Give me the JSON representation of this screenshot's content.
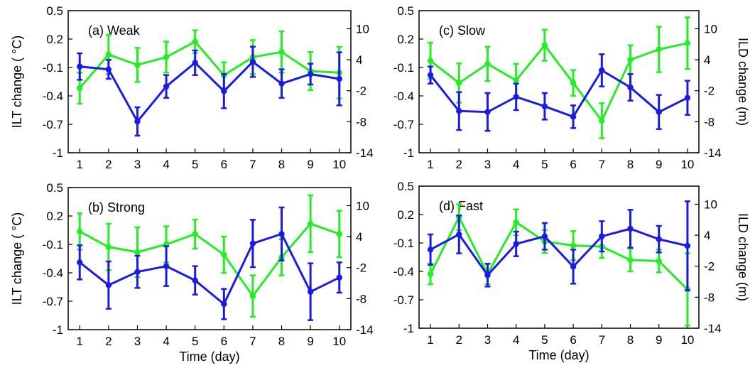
{
  "colors": {
    "ilt": "#1a1ae6",
    "ild": "#22ee22"
  },
  "shared": {
    "xlabel": "Time (day)",
    "ylabel_left": "ILT change ( °C)",
    "ylabel_right": "ILD change (m)",
    "left_ticks": [
      "0.5",
      "0.2",
      "-0.1",
      "-0.4",
      "-0.7",
      "-1"
    ],
    "right_ticks": [
      "10",
      "4",
      "-2",
      "-8",
      "-14"
    ],
    "x_ticks": [
      "1",
      "2",
      "3",
      "4",
      "5",
      "6",
      "7",
      "8",
      "9",
      "10"
    ]
  },
  "chart_data": [
    {
      "type": "line",
      "title": "(a) Weak",
      "x": [
        1,
        2,
        3,
        4,
        5,
        6,
        7,
        8,
        9,
        10
      ],
      "xlim": [
        0.6,
        10.4
      ],
      "ylim_left": [
        -1,
        0.5
      ],
      "ylim_right": [
        -14,
        13.5
      ],
      "series": [
        {
          "axis": "left",
          "color": "ilt",
          "values": [
            -0.09,
            -0.12,
            -0.67,
            -0.3,
            -0.05,
            -0.35,
            -0.04,
            -0.27,
            -0.17,
            -0.22
          ],
          "err": [
            0.14,
            0.1,
            0.15,
            0.12,
            0.13,
            0.18,
            0.16,
            0.15,
            0.11,
            0.28
          ]
        },
        {
          "axis": "right",
          "color": "ild",
          "values": [
            -1.5,
            5,
            3,
            4.5,
            7.5,
            1,
            4.5,
            5.5,
            1.8,
            1.5
          ],
          "err": [
            3,
            3.8,
            3.3,
            3,
            2.2,
            2.5,
            3.3,
            4,
            3.7,
            5
          ]
        }
      ]
    },
    {
      "type": "line",
      "title": "(b) Strong",
      "x": [
        1,
        2,
        3,
        4,
        5,
        6,
        7,
        8,
        9,
        10
      ],
      "xlim": [
        0.6,
        10.4
      ],
      "ylim_left": [
        -1,
        0.5
      ],
      "ylim_right": [
        -14,
        13.5
      ],
      "series": [
        {
          "axis": "left",
          "color": "ilt",
          "values": [
            -0.29,
            -0.53,
            -0.39,
            -0.33,
            -0.48,
            -0.73,
            -0.09,
            0.01,
            -0.6,
            -0.45
          ],
          "err": [
            0.18,
            0.25,
            0.17,
            0.21,
            0.15,
            0.16,
            0.25,
            0.28,
            0.3,
            0.16
          ]
        },
        {
          "axis": "right",
          "color": "ild",
          "values": [
            5,
            2,
            1,
            2.5,
            4.5,
            0.5,
            -7.5,
            0,
            6.5,
            4.5
          ],
          "err": [
            3.5,
            4.5,
            4.8,
            3.5,
            2.8,
            3.5,
            4,
            3.5,
            5.5,
            4.5
          ]
        }
      ]
    },
    {
      "type": "line",
      "title": "(c) Slow",
      "x": [
        1,
        2,
        3,
        4,
        5,
        6,
        7,
        8,
        9,
        10
      ],
      "xlim": [
        0.6,
        10.4
      ],
      "ylim_left": [
        -1,
        0.5
      ],
      "ylim_right": [
        -14,
        13.5
      ],
      "series": [
        {
          "axis": "left",
          "color": "ilt",
          "values": [
            -0.18,
            -0.56,
            -0.57,
            -0.41,
            -0.51,
            -0.62,
            -0.13,
            -0.31,
            -0.57,
            -0.42
          ],
          "err": [
            0.09,
            0.2,
            0.2,
            0.14,
            0.14,
            0.12,
            0.17,
            0.14,
            0.18,
            0.18
          ]
        },
        {
          "axis": "right",
          "color": "ild",
          "values": [
            3.8,
            -0.5,
            3.2,
            0,
            6.8,
            -0.5,
            -7.8,
            4,
            6,
            7.2
          ],
          "err": [
            3.5,
            3.8,
            3.3,
            3.2,
            3,
            2.5,
            3.4,
            2.8,
            4.4,
            5
          ]
        }
      ]
    },
    {
      "type": "line",
      "title": "(d) Fast",
      "x": [
        1,
        2,
        3,
        4,
        5,
        6,
        7,
        8,
        9,
        10
      ],
      "xlim": [
        0.6,
        10.4
      ],
      "ylim_left": [
        -1,
        0.5
      ],
      "ylim_right": [
        -14,
        13.5
      ],
      "series": [
        {
          "axis": "left",
          "color": "ilt",
          "values": [
            -0.17,
            -0.01,
            -0.44,
            -0.11,
            -0.03,
            -0.35,
            -0.03,
            0.05,
            -0.06,
            -0.13
          ],
          "err": [
            0.16,
            0.2,
            0.12,
            0.13,
            0.14,
            0.18,
            0.16,
            0.2,
            0.14,
            0.47
          ]
        },
        {
          "axis": "right",
          "color": "ild",
          "values": [
            -3.5,
            7.5,
            -3.5,
            6.5,
            2.8,
            2,
            1.8,
            -0.8,
            -1,
            -6.5
          ],
          "err": [
            2,
            2.5,
            2,
            2.5,
            2.2,
            2.8,
            2.2,
            2.2,
            2.2,
            7
          ]
        }
      ]
    }
  ]
}
